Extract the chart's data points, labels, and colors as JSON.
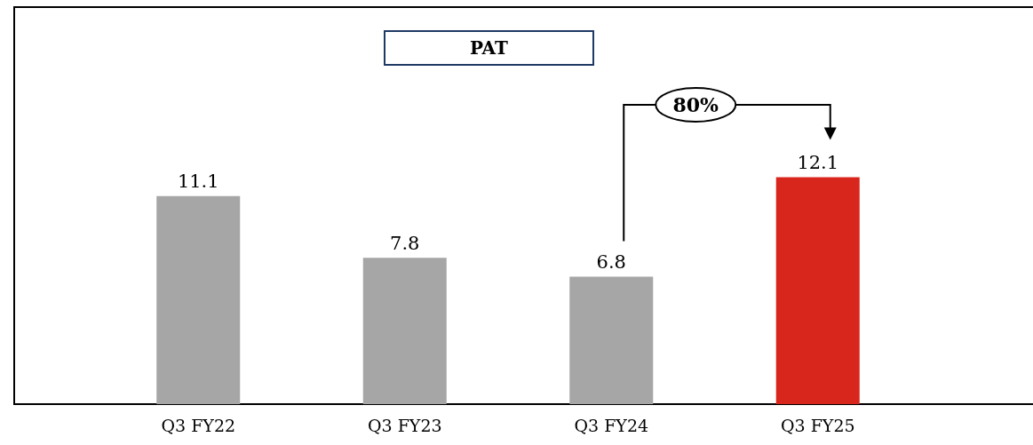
{
  "chart_data": {
    "type": "bar",
    "title": "PAT",
    "categories": [
      "Q3 FY22",
      "Q3 FY23",
      "Q3 FY24",
      "Q3 FY25"
    ],
    "values": [
      11.1,
      7.8,
      6.8,
      12.1
    ],
    "colors": [
      "#a6a6a6",
      "#a6a6a6",
      "#a6a6a6",
      "#d9261c"
    ],
    "data_labels": true,
    "annotations": [
      "80%"
    ]
  }
}
